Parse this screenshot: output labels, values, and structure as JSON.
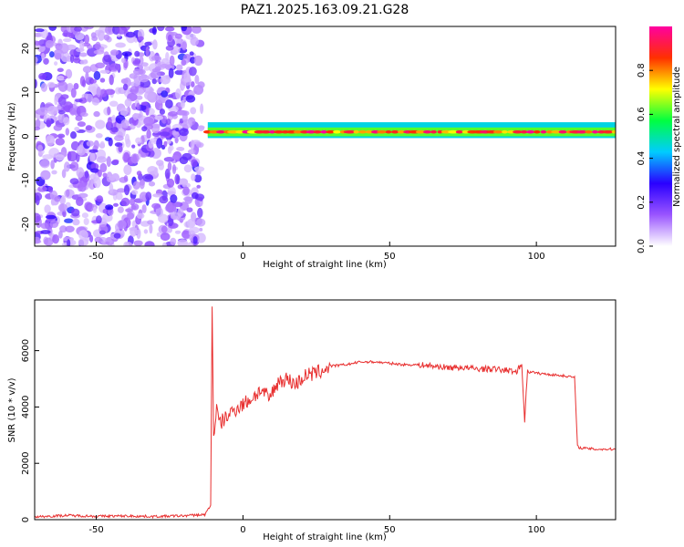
{
  "title": "PAZ1.2025.163.09.21.G28",
  "chart_data": [
    {
      "type": "heatmap",
      "xlabel": "Height of straight line (km)",
      "ylabel": "Frequency (Hz)",
      "xlim": [
        -71,
        127
      ],
      "ylim": [
        -25,
        25
      ],
      "xticks": [
        -50,
        0,
        50,
        100
      ],
      "yticks": [
        -20,
        -10,
        0,
        10,
        20
      ],
      "colorbar": {
        "label": "Normalized spectral amplitude",
        "range": [
          0,
          1
        ],
        "ticks": [
          "0.0",
          "0.2",
          "0.4",
          "0.6",
          "0.8"
        ],
        "colors": [
          "#ffffff",
          "#9a55ff",
          "#2a00ff",
          "#00ccff",
          "#00ff40",
          "#ffff00",
          "#ff3000",
          "#ff00a0"
        ]
      },
      "bands": [
        {
          "x_start": -71,
          "x_end": -14,
          "freq_min": -25,
          "freq_max": 25,
          "amplitude": 0.12
        },
        {
          "x_start": -12,
          "x_end": 127,
          "freq_min": 0,
          "freq_max": 2,
          "amplitude": 0.9
        }
      ],
      "grid": false
    },
    {
      "type": "line",
      "xlabel": "Height of straight line (km)",
      "ylabel": "SNR (10 * v/v)",
      "xlim": [
        -71,
        127
      ],
      "ylim": [
        0,
        7800
      ],
      "xticks": [
        -50,
        0,
        50,
        100
      ],
      "yticks": [
        0,
        2000,
        4000,
        6000
      ],
      "color": "#e83030",
      "series": [
        {
          "x": [
            -71,
            -60,
            -50,
            -40,
            -30,
            -20,
            -13,
            -11,
            -10.5,
            -10,
            -9,
            -8,
            -6,
            -3,
            0,
            3,
            6,
            9,
            12,
            15,
            18,
            21,
            25,
            30,
            35,
            40,
            45,
            50,
            55,
            60,
            65,
            70,
            75,
            80,
            85,
            90,
            93,
            95,
            96,
            97,
            100,
            105,
            110,
            113,
            114,
            115,
            120,
            127
          ],
          "y": [
            100,
            150,
            120,
            130,
            110,
            140,
            180,
            500,
            7600,
            3000,
            3900,
            3400,
            3600,
            3900,
            4100,
            4300,
            4600,
            4300,
            4900,
            5000,
            4800,
            5100,
            5200,
            5450,
            5500,
            5600,
            5600,
            5550,
            5500,
            5500,
            5450,
            5400,
            5400,
            5350,
            5350,
            5300,
            5250,
            5500,
            3550,
            5300,
            5200,
            5150,
            5100,
            5050,
            2600,
            2550,
            2500,
            2500
          ]
        }
      ],
      "grid": false
    }
  ]
}
